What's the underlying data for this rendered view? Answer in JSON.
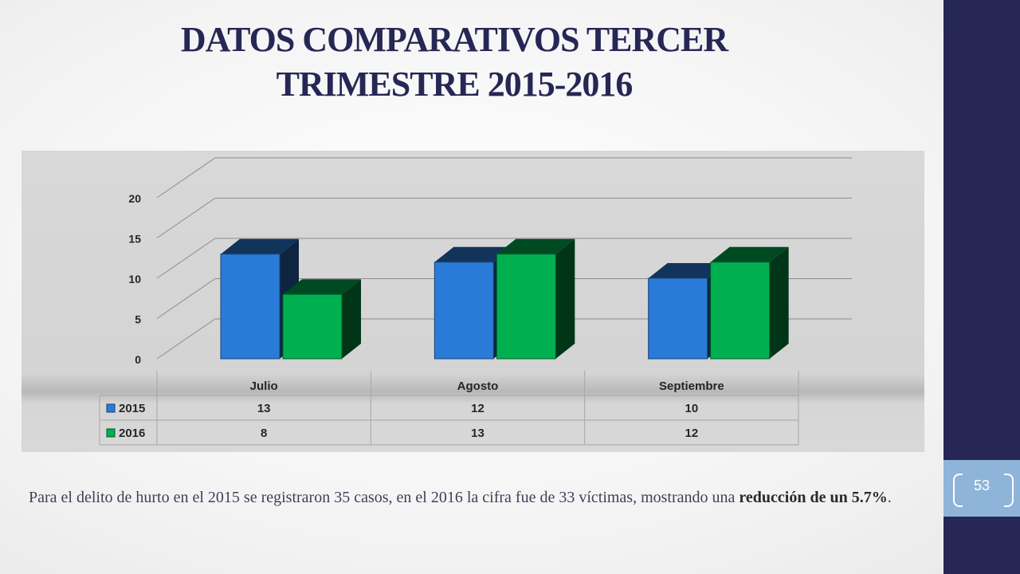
{
  "title": "DATOS COMPARATIVOS TERCER TRIMESTRE 2015-2016",
  "page_number": "53",
  "caption": {
    "text_before": "Para el delito de hurto en el 2015 se registraron 35 casos, en el 2016 la cifra fue de 33 víctimas, mostrando una ",
    "emphasis": "reducción de un 5.7%",
    "text_after": "."
  },
  "colors": {
    "sidebar": "#262755",
    "page_box": "#8fb4d9",
    "series_2015": "#2a7bd8",
    "series_2016": "#00b050",
    "title": "#262755"
  },
  "chart_data": {
    "type": "bar",
    "style": "3d-clustered-column-with-data-table",
    "title": "",
    "xlabel": "",
    "ylabel": "",
    "categories": [
      "Julio",
      "Agosto",
      "Septiembre"
    ],
    "series": [
      {
        "name": "2015",
        "values": [
          13,
          12,
          10
        ],
        "color": "#2a7bd8"
      },
      {
        "name": "2016",
        "values": [
          8,
          13,
          12
        ],
        "color": "#00b050"
      }
    ],
    "ylim": [
      0,
      20
    ],
    "yticks": [
      0,
      5,
      10,
      15,
      20
    ],
    "grid": true,
    "legend": "in data table"
  }
}
